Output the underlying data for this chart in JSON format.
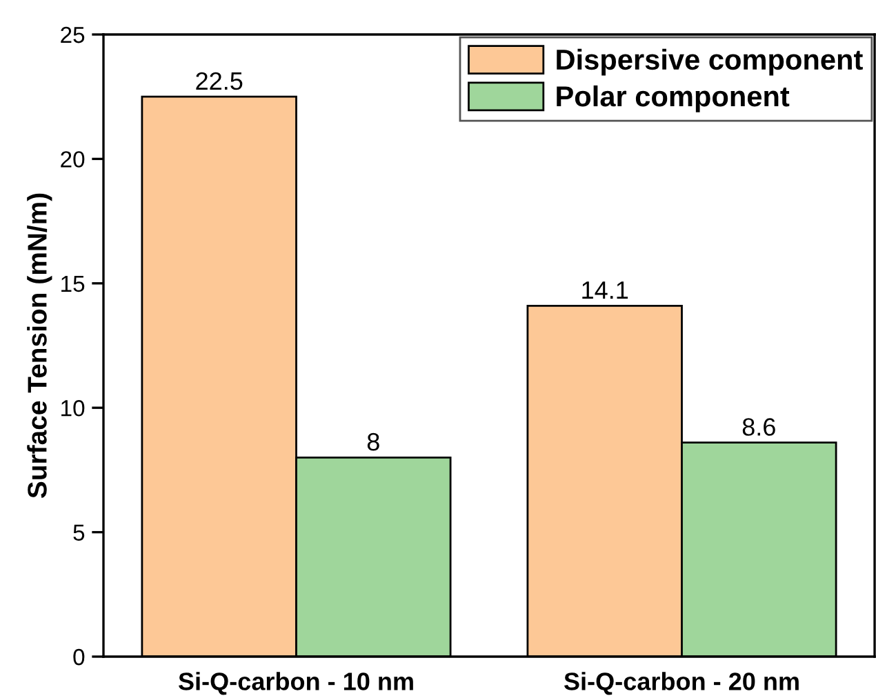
{
  "chart_data": {
    "type": "bar",
    "ylabel": "Surface Tension (mN/m)",
    "categories": [
      "Si-Q-carbon - 10 nm",
      "Si-Q-carbon - 20 nm"
    ],
    "series": [
      {
        "name": "Dispersive component",
        "color": "#fdc896",
        "values": [
          22.5,
          14.1
        ]
      },
      {
        "name": "Polar component",
        "color": "#9fd69b",
        "values": [
          8,
          8.6
        ]
      }
    ],
    "ylim": [
      0,
      25
    ],
    "yticks": [
      0,
      5,
      10,
      15,
      20,
      25
    ],
    "data_labels": true,
    "legend": "top right",
    "grid": false
  }
}
